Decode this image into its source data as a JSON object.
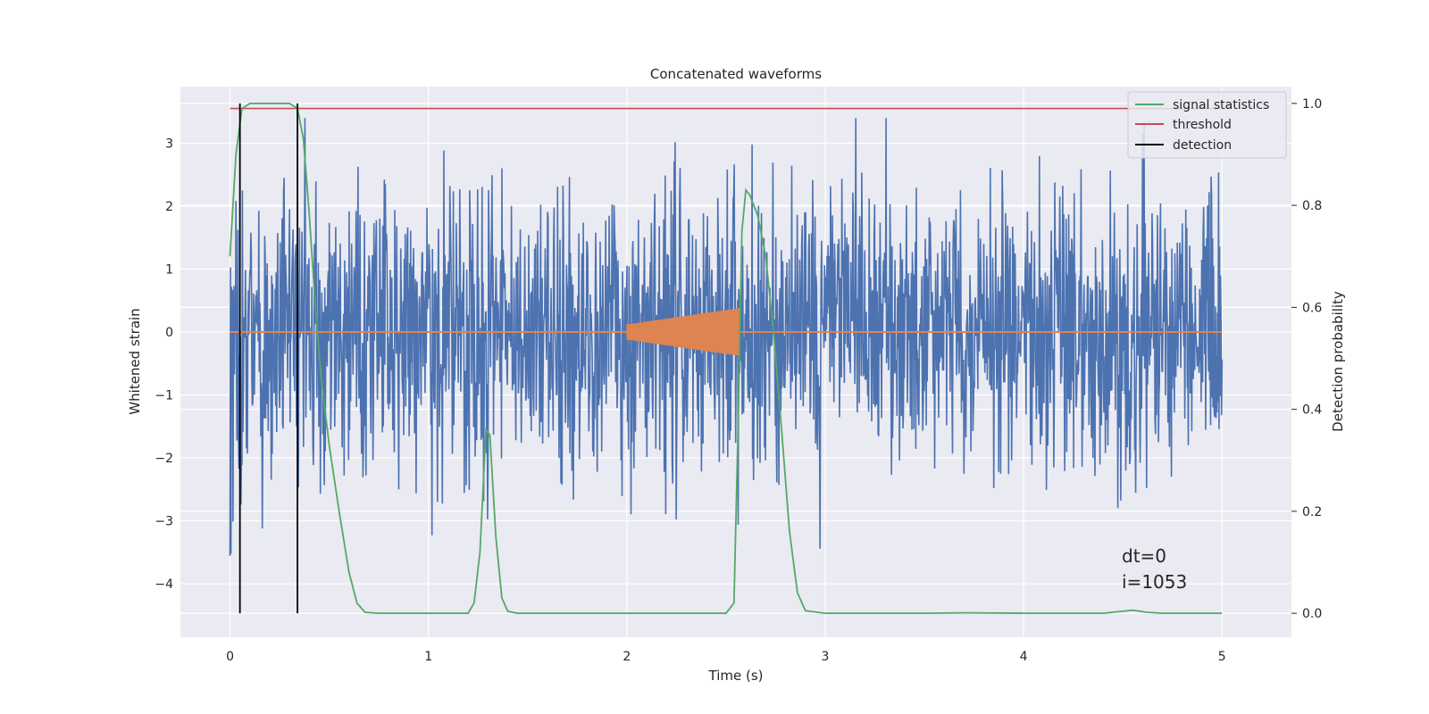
{
  "chart_data": {
    "type": "line",
    "title": "Concatenated waveforms",
    "xlabel": "Time (s)",
    "ylabel": "Whitened strain",
    "y2label": "Detection probability",
    "xlim": [
      -0.25,
      5.35
    ],
    "ylim": [
      -4.85,
      3.9
    ],
    "y2lim": [
      -0.047,
      1.033
    ],
    "xticks": [
      0,
      1,
      2,
      3,
      4,
      5
    ],
    "yticks": [
      -4,
      -3,
      -2,
      -1,
      0,
      1,
      2,
      3
    ],
    "y2ticks": [
      0.0,
      0.2,
      0.4,
      0.6,
      0.8,
      1.0
    ],
    "grid": true,
    "legend_position": "upper right",
    "colors": {
      "noise": "#4c72b0",
      "injection": "#dd8452",
      "signal_statistics": "#55a868",
      "threshold": "#c44e52",
      "detection": "#000000",
      "axes_bg": "#eaeaf2",
      "grid": "#ffffff"
    },
    "noise": {
      "x_range": [
        0,
        5
      ],
      "approx_envelope": [
        -3.7,
        3.4
      ],
      "sample_count": 2000
    },
    "injection": {
      "x_range": [
        2.0,
        2.57
      ],
      "start_amplitude": 0.12,
      "end_amplitude": 0.38
    },
    "series": [
      {
        "name": "signal statistics",
        "axis": "y2",
        "x": [
          0,
          0.03,
          0.06,
          0.1,
          0.2,
          0.3,
          0.34,
          0.37,
          0.4,
          0.43,
          0.46,
          0.5,
          0.55,
          0.6,
          0.64,
          0.68,
          0.75,
          1.0,
          1.2,
          1.23,
          1.26,
          1.29,
          1.31,
          1.34,
          1.37,
          1.4,
          1.45,
          1.6,
          2.0,
          2.3,
          2.5,
          2.54,
          2.56,
          2.58,
          2.6,
          2.62,
          2.66,
          2.7,
          2.74,
          2.78,
          2.82,
          2.86,
          2.9,
          3.0,
          3.5,
          3.7,
          4.0,
          4.4,
          4.5,
          4.55,
          4.62,
          4.7,
          5.0
        ],
        "y": [
          0.7,
          0.9,
          0.99,
          1.0,
          1.0,
          1.0,
          0.99,
          0.93,
          0.78,
          0.6,
          0.46,
          0.33,
          0.2,
          0.08,
          0.02,
          0.002,
          0.0,
          0.0,
          0.0,
          0.02,
          0.12,
          0.36,
          0.35,
          0.15,
          0.03,
          0.004,
          0.0,
          0.0,
          0.0,
          0.0,
          0.0,
          0.02,
          0.35,
          0.75,
          0.83,
          0.82,
          0.78,
          0.7,
          0.55,
          0.36,
          0.16,
          0.04,
          0.005,
          0.0,
          0.0,
          0.001,
          0.0,
          0.0,
          0.004,
          0.006,
          0.002,
          0.0,
          0.0
        ]
      },
      {
        "name": "threshold",
        "axis": "y2",
        "x": [
          0,
          5
        ],
        "y": [
          0.99,
          0.99
        ]
      },
      {
        "name": "detection",
        "axis": "y2",
        "x_positions": [
          0.05,
          0.34
        ],
        "y_range": [
          0.0,
          1.0
        ]
      }
    ],
    "annotations": [
      "dt=0",
      "i=1053"
    ]
  }
}
